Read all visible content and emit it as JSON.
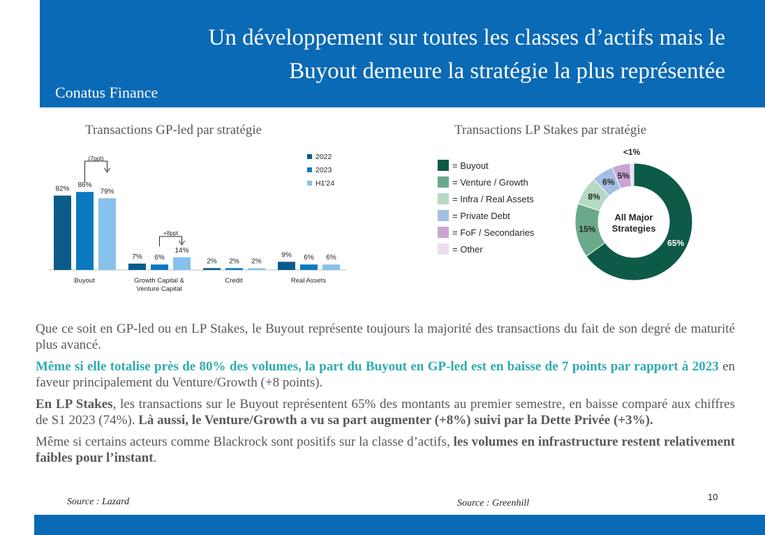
{
  "header": {
    "title_line1": "Un développement sur toutes les classes d’actifs mais le",
    "title_line2": "Buyout demeure la stratégie la plus représentée",
    "subtitle": "Conatus Finance",
    "color": "#0a6ab5"
  },
  "left_chart_title": "Transactions GP-led par stratégie",
  "right_chart_title": "Transactions LP Stakes par stratégie",
  "chart_data": [
    {
      "type": "bar",
      "categories": [
        "Buyout",
        "Growth Capital & Venture Capital",
        "Credit",
        "Real Assets"
      ],
      "category_lines": [
        [
          "Buyout"
        ],
        [
          "Growth Capital &",
          "Venture Capital"
        ],
        [
          "Credit"
        ],
        [
          "Real Assets"
        ]
      ],
      "series": [
        {
          "name": "2022",
          "color": "#0a5b8a",
          "values": [
            82,
            7,
            2,
            9
          ],
          "labels": [
            "82%",
            "7%",
            "2%",
            "9%"
          ]
        },
        {
          "name": "2023",
          "color": "#0a79c0",
          "values": [
            86,
            6,
            2,
            6
          ],
          "labels": [
            "86%",
            "6%",
            "2%",
            "6%"
          ]
        },
        {
          "name": "H1'24",
          "color": "#86c2ec",
          "values": [
            79,
            14,
            2,
            6
          ],
          "labels": [
            "79%",
            "14%",
            "2%",
            "6%"
          ]
        }
      ],
      "annotations": [
        {
          "text": "(7ppt)",
          "category": "Buyout"
        },
        {
          "text": "+8ppt",
          "category": "Growth Capital & Venture Capital"
        }
      ],
      "ylim": [
        0,
        100
      ],
      "legend_position": "top-right"
    },
    {
      "type": "pie",
      "center_label": [
        "All Major",
        "Strategies"
      ],
      "slices": [
        {
          "label": "Buyout",
          "legend": "= Buyout",
          "value": 65,
          "display": "65%",
          "color": "#0e5a48"
        },
        {
          "label": "Venture / Growth",
          "legend": "= Venture / Growth",
          "value": 15,
          "display": "15%",
          "color": "#6aa98a"
        },
        {
          "label": "Infra / Real Assets",
          "legend": "= Infra / Real Assets",
          "value": 8,
          "display": "8%",
          "color": "#b5d9c4"
        },
        {
          "label": "Private Debt",
          "legend": "= Private Debt",
          "value": 6,
          "display": "6%",
          "color": "#a4bfe2"
        },
        {
          "label": "FoF / Secondaries",
          "legend": "= FoF / Secondaries",
          "value": 5,
          "display": "5%",
          "color": "#c9a6d2"
        },
        {
          "label": "Other",
          "legend": "= Other",
          "value": 1,
          "display": "<1%",
          "color": "#e9dfee"
        }
      ],
      "legend_position": "left"
    }
  ],
  "body": {
    "p1": "Que ce soit en GP-led ou en LP Stakes, le Buyout représente toujours la majorité des transactions du fait de son degré de maturité plus avancé.",
    "p2_bold": "Même si elle totalise près de 80% des volumes, la part du Buyout en GP-led est en baisse de 7 points par rapport à 2023",
    "p2_rest": " en faveur principalement du Venture/Growth (+8 points).",
    "p3_bold1": "En LP Stakes",
    "p3_mid": ", les transactions sur le Buyout représentent 65% des montants au premier semestre, en baisse comparé aux chiffres de S1 2023 (74%). ",
    "p3_bold2": "Là aussi, le Venture/Growth a vu sa part augmenter (+8%) suivi par la Dette Privée (+3%).",
    "p4_start": "Même si certains acteurs comme Blackrock sont positifs sur la classe d’actifs, ",
    "p4_bold": "les volumes en infrastructure restent relativement faibles pour l’instant",
    "p4_end": "."
  },
  "footer": {
    "source_left": "Source : Lazard",
    "source_right": "Source : Greenhill",
    "page_number": "10"
  }
}
